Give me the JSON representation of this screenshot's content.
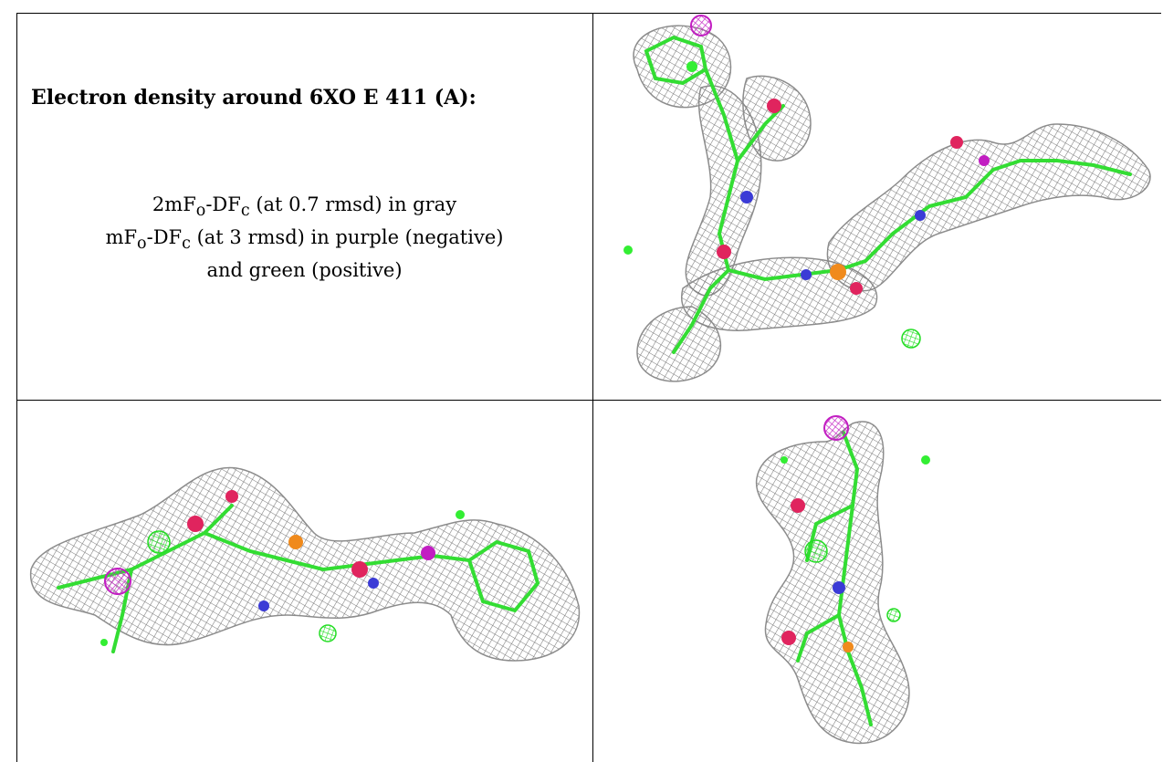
{
  "caption": {
    "title": "Electron density around 6XO E 411 (A):",
    "line1": {
      "a": "2mF",
      "a_sub": "o",
      "b": "-DF",
      "b_sub": "c",
      "c": " (at 0.7 rmsd) in gray"
    },
    "line2": {
      "a": "mF",
      "a_sub": "o",
      "b": "-DF",
      "b_sub": "c",
      "c": " (at 3 rmsd) in purple (negative)"
    },
    "line3": "and green (positive)"
  },
  "colors": {
    "mesh_gray": "#8c8c8c",
    "negative_purple": "#cc22cc",
    "positive_green": "#33ee33",
    "carbon_green": "#33dd33",
    "oxygen_red": "#e0245e",
    "nitrogen_blue": "#3b3bd6",
    "phosphorus_orange": "#f08a1c"
  },
  "panels": [
    {
      "name": "view-top-right",
      "icon": "electron-density-view"
    },
    {
      "name": "view-bottom-left",
      "icon": "electron-density-view"
    },
    {
      "name": "view-bottom-right",
      "icon": "electron-density-view"
    }
  ]
}
